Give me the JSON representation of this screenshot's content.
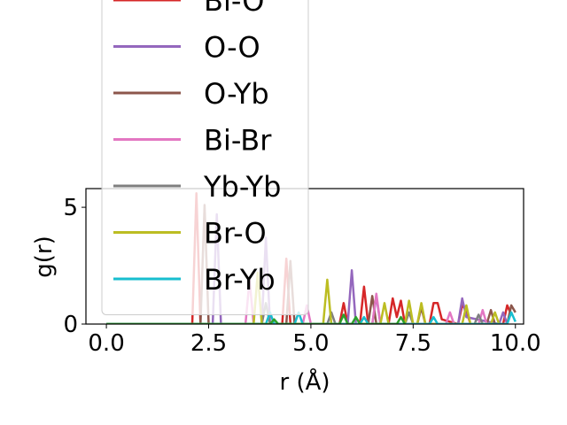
{
  "chart_data": {
    "type": "line",
    "xlabel": "r (Å)",
    "ylabel": "g(r)",
    "xlim": [
      -0.5,
      10.2
    ],
    "ylim": [
      0,
      5.8
    ],
    "x_ticks": [
      "0.0",
      "2.5",
      "5.0",
      "7.5",
      "10.0"
    ],
    "x_tick_values": [
      0,
      2.5,
      5,
      7.5,
      10
    ],
    "y_ticks": [
      "0",
      "5"
    ],
    "y_tick_values": [
      0,
      5
    ],
    "grid": false,
    "legend_placement": "upper-left",
    "series": [
      {
        "name": "Bi-O",
        "color": "#d62728",
        "points": [
          [
            0,
            0
          ],
          [
            2.1,
            0
          ],
          [
            2.2,
            5.6
          ],
          [
            2.3,
            0
          ],
          [
            4.3,
            0
          ],
          [
            4.4,
            2.8
          ],
          [
            4.5,
            0
          ],
          [
            5.7,
            0
          ],
          [
            5.8,
            0.9
          ],
          [
            5.9,
            0
          ],
          [
            6.2,
            0
          ],
          [
            6.3,
            1.6
          ],
          [
            6.4,
            0
          ],
          [
            6.9,
            0
          ],
          [
            7.0,
            1.1
          ],
          [
            7.1,
            0.3
          ],
          [
            7.2,
            1.0
          ],
          [
            7.3,
            0
          ],
          [
            7.9,
            0
          ],
          [
            8.0,
            0.9
          ],
          [
            8.1,
            0.9
          ],
          [
            8.2,
            0.2
          ],
          [
            8.6,
            0
          ],
          [
            8.7,
            0.8
          ],
          [
            8.8,
            0.6
          ],
          [
            8.9,
            0
          ],
          [
            9.7,
            0
          ],
          [
            9.8,
            0.8
          ],
          [
            9.9,
            0.4
          ]
        ]
      },
      {
        "name": "O-O",
        "color": "#9467bd",
        "points": [
          [
            0,
            0
          ],
          [
            2.6,
            0
          ],
          [
            2.7,
            4.7
          ],
          [
            2.8,
            0
          ],
          [
            3.8,
            0
          ],
          [
            3.9,
            3.7
          ],
          [
            4.0,
            0
          ],
          [
            5.9,
            0
          ],
          [
            6.0,
            2.3
          ],
          [
            6.1,
            0
          ],
          [
            6.5,
            0
          ],
          [
            6.6,
            1.2
          ],
          [
            6.7,
            0
          ],
          [
            8.6,
            0
          ],
          [
            8.7,
            1.1
          ],
          [
            8.8,
            0.3
          ],
          [
            9.6,
            0
          ],
          [
            9.7,
            0.5
          ],
          [
            9.8,
            0
          ]
        ]
      },
      {
        "name": "O-Yb",
        "color": "#8c564b",
        "points": [
          [
            0,
            0
          ],
          [
            2.3,
            0
          ],
          [
            2.4,
            5.1
          ],
          [
            2.5,
            0
          ],
          [
            4.4,
            0
          ],
          [
            4.5,
            2.7
          ],
          [
            4.6,
            0
          ],
          [
            6.4,
            0
          ],
          [
            6.5,
            1.2
          ],
          [
            6.6,
            0
          ],
          [
            7.6,
            0
          ],
          [
            7.7,
            0.7
          ],
          [
            7.8,
            0
          ],
          [
            9.3,
            0
          ],
          [
            9.4,
            0.6
          ],
          [
            9.5,
            0
          ],
          [
            9.8,
            0
          ],
          [
            9.9,
            0.8
          ],
          [
            10.0,
            0.5
          ]
        ]
      },
      {
        "name": "Bi-Br",
        "color": "#e377c2",
        "points": [
          [
            0,
            0
          ],
          [
            3.4,
            0
          ],
          [
            3.5,
            1.9
          ],
          [
            3.6,
            0
          ],
          [
            4.8,
            0
          ],
          [
            4.9,
            0.8
          ],
          [
            5.0,
            0
          ],
          [
            6.5,
            0
          ],
          [
            6.6,
            1.3
          ],
          [
            6.7,
            0
          ],
          [
            8.3,
            0
          ],
          [
            8.4,
            0.5
          ],
          [
            8.5,
            0
          ],
          [
            9.1,
            0
          ],
          [
            9.2,
            0.6
          ],
          [
            9.3,
            0
          ]
        ]
      },
      {
        "name": "Yb-Yb",
        "color": "#7f7f7f",
        "points": [
          [
            0,
            0
          ],
          [
            3.8,
            0
          ],
          [
            3.9,
            0.9
          ],
          [
            4.0,
            0
          ],
          [
            5.4,
            0
          ],
          [
            5.5,
            0.5
          ],
          [
            5.6,
            0
          ],
          [
            7.3,
            0
          ],
          [
            7.4,
            0.5
          ],
          [
            7.5,
            0
          ],
          [
            9.0,
            0
          ],
          [
            9.1,
            0.4
          ],
          [
            9.2,
            0
          ]
        ]
      },
      {
        "name": "Br-O",
        "color": "#bcbd22",
        "points": [
          [
            0,
            0
          ],
          [
            3.6,
            0
          ],
          [
            3.7,
            2.2
          ],
          [
            3.8,
            0
          ],
          [
            5.3,
            0
          ],
          [
            5.4,
            1.9
          ],
          [
            5.5,
            0
          ],
          [
            6.7,
            0
          ],
          [
            6.8,
            0.9
          ],
          [
            6.9,
            0
          ],
          [
            7.3,
            0
          ],
          [
            7.4,
            1.0
          ],
          [
            7.5,
            0
          ],
          [
            7.6,
            0
          ],
          [
            7.7,
            0.9
          ],
          [
            7.8,
            0
          ],
          [
            8.7,
            0
          ],
          [
            8.8,
            0.8
          ],
          [
            8.9,
            0
          ],
          [
            9.4,
            0
          ],
          [
            9.5,
            0.5
          ],
          [
            9.6,
            0
          ]
        ]
      },
      {
        "name": "Br-Yb",
        "color": "#17becf",
        "points": [
          [
            0,
            0
          ],
          [
            3.9,
            0
          ],
          [
            4.0,
            0.5
          ],
          [
            4.1,
            0
          ],
          [
            4.6,
            0
          ],
          [
            4.7,
            0.5
          ],
          [
            4.8,
            0
          ],
          [
            6.2,
            0
          ],
          [
            6.3,
            0.3
          ],
          [
            6.4,
            0
          ],
          [
            7.9,
            0
          ],
          [
            8.0,
            0.3
          ],
          [
            8.1,
            0
          ],
          [
            9.8,
            0
          ],
          [
            9.9,
            0.5
          ],
          [
            10.0,
            0.1
          ]
        ]
      },
      {
        "name": "",
        "color": "#2ca02c",
        "points": [
          [
            0,
            0
          ],
          [
            4.0,
            0
          ],
          [
            4.1,
            0.2
          ],
          [
            4.2,
            0
          ],
          [
            5.7,
            0
          ],
          [
            5.8,
            0.4
          ],
          [
            5.9,
            0
          ],
          [
            6.0,
            0
          ],
          [
            6.1,
            0.3
          ],
          [
            6.2,
            0
          ],
          [
            7.1,
            0
          ],
          [
            7.2,
            0.3
          ],
          [
            7.3,
            0
          ]
        ]
      }
    ]
  }
}
